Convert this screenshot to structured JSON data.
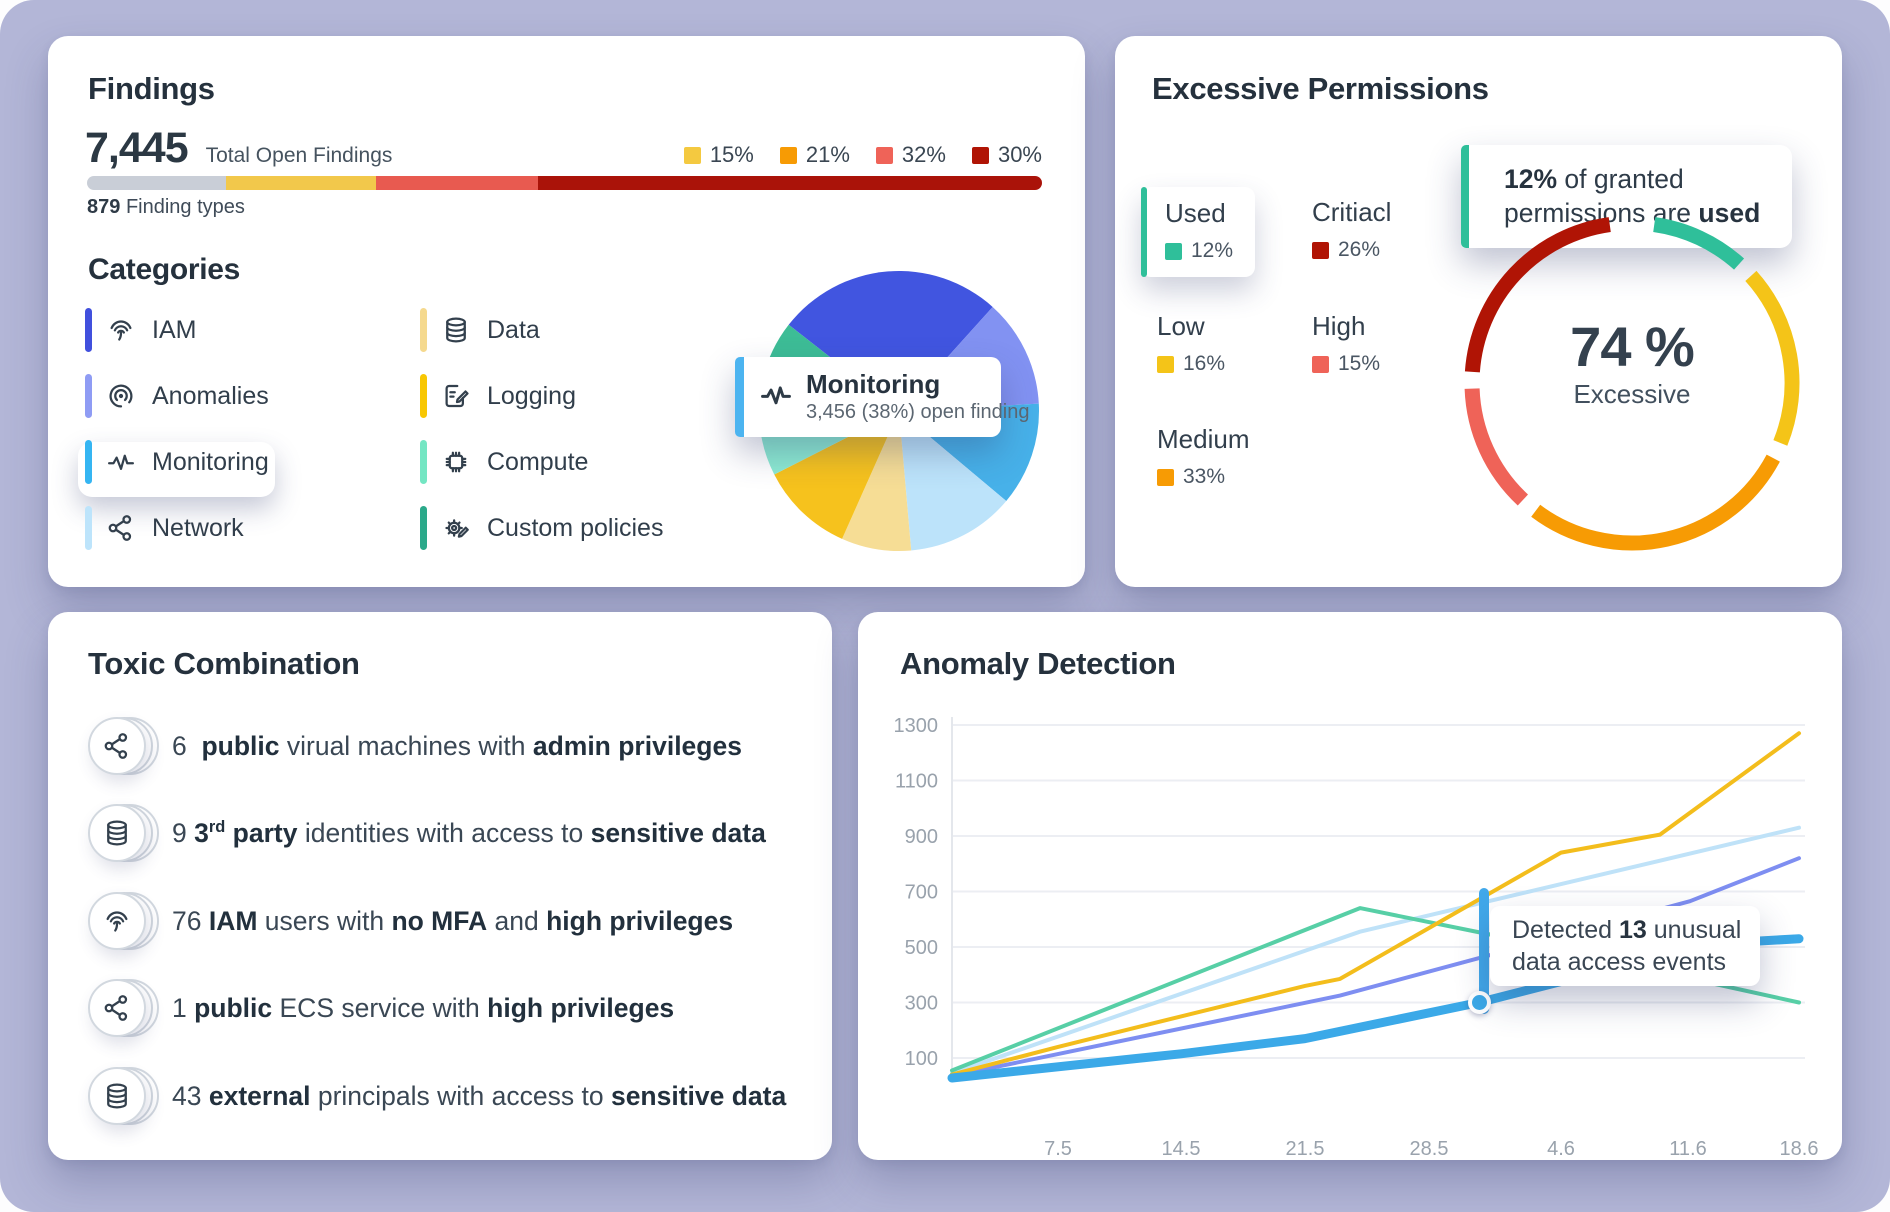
{
  "app": {
    "background": "#b3b6d7"
  },
  "findings": {
    "title": "Findings",
    "total": "7,445",
    "total_label": "Total Open Findings",
    "legend": [
      {
        "label": "15%",
        "color": "#f4c940"
      },
      {
        "label": "21%",
        "color": "#f79b04"
      },
      {
        "label": "32%",
        "color": "#ef6358"
      },
      {
        "label": "30%",
        "color": "#b01405"
      }
    ],
    "bar_segments": [
      {
        "color": "#c9ced7",
        "pct": 14.6
      },
      {
        "color": "#f2c84b",
        "pct": 15.7
      },
      {
        "color": "#e85a50",
        "pct": 16.9
      },
      {
        "color": "#aa1309",
        "pct": 52.8
      }
    ],
    "types_count": "879",
    "types_label": "Finding types",
    "categories_title": "Categories",
    "categories": [
      {
        "label": "IAM",
        "color": "#4150dd",
        "icon": "fingerprint"
      },
      {
        "label": "Anomalies",
        "color": "#8f9cf4",
        "icon": "anomaly"
      },
      {
        "label": "Monitoring",
        "color": "#35b5f2",
        "icon": "pulse",
        "highlight": true
      },
      {
        "label": "Network",
        "color": "#bde4fb",
        "icon": "network"
      },
      {
        "label": "Data",
        "color": "#f5d98e",
        "icon": "database"
      },
      {
        "label": "Logging",
        "color": "#f8c703",
        "icon": "logging"
      },
      {
        "label": "Compute",
        "color": "#74e6c3",
        "icon": "chip"
      },
      {
        "label": "Custom policies",
        "color": "#2ba98a",
        "icon": "policy"
      }
    ],
    "tooltip": {
      "title": "Monitoring",
      "subtitle": "3,456 (38%) open finding",
      "accent": "#4cb4f0"
    }
  },
  "permissions": {
    "title": "Excessive Permissions",
    "legend": [
      {
        "label": "Used",
        "pct": "12%",
        "color": "#2fbf9a",
        "highlight": true
      },
      {
        "label": "Critiacl",
        "pct": "26%",
        "color": "#b01405"
      },
      {
        "label": "Low",
        "pct": "16%",
        "color": "#f4c418"
      },
      {
        "label": "High",
        "pct": "15%",
        "color": "#ef6358"
      },
      {
        "label": "Medium",
        "pct": "33%",
        "color": "#f79b04"
      }
    ],
    "tooltip": {
      "line1_bold": "12%",
      "line1_rest": " of granted",
      "line2_rest": "permissions are ",
      "line2_bold": "used"
    },
    "donut_center_value": "74 %",
    "donut_center_label": "Excessive"
  },
  "toxic": {
    "title": "Toxic Combination",
    "rows": [
      {
        "icon": "network",
        "runs": [
          {
            "t": "6  "
          },
          {
            "t": "public",
            "b": true
          },
          {
            "t": " virual machines with "
          },
          {
            "t": "admin privileges",
            "b": true
          }
        ]
      },
      {
        "icon": "database",
        "runs": [
          {
            "t": "9 "
          },
          {
            "t": "3",
            "b": true
          },
          {
            "t": "rd",
            "b": true,
            "sup": true
          },
          {
            "t": " party",
            "b": true
          },
          {
            "t": " identities with access to "
          },
          {
            "t": "sensitive data",
            "b": true
          }
        ]
      },
      {
        "icon": "fingerprint",
        "runs": [
          {
            "t": "76 "
          },
          {
            "t": "IAM",
            "b": true
          },
          {
            "t": " users with "
          },
          {
            "t": "no MFA",
            "b": true
          },
          {
            "t": " and "
          },
          {
            "t": "high privileges",
            "b": true
          }
        ]
      },
      {
        "icon": "network",
        "runs": [
          {
            "t": "1 "
          },
          {
            "t": "public",
            "b": true
          },
          {
            "t": " ECS service with "
          },
          {
            "t": "high privileges",
            "b": true
          }
        ]
      },
      {
        "icon": "database",
        "runs": [
          {
            "t": "43 "
          },
          {
            "t": "external",
            "b": true
          },
          {
            "t": " principals with access to "
          },
          {
            "t": "sensitive data",
            "b": true
          }
        ]
      }
    ]
  },
  "anomaly": {
    "title": "Anomaly Detection",
    "tooltip": {
      "line1_pre": "Detected ",
      "line1_bold": "13",
      "line1_post": " unusual",
      "line2": "data access events",
      "accent": "#41a8ea"
    }
  },
  "chart_data": [
    {
      "type": "pie",
      "title": "Findings by category",
      "highlight_label": "Monitoring",
      "highlight_value": "3,456 (38%) open finding",
      "slices": [
        {
          "name": "monitoring",
          "color": "#4155e0",
          "start": -52,
          "end": 42
        },
        {
          "name": "slice-periwinkle",
          "color": "#8292f2",
          "start": 42,
          "end": 87
        },
        {
          "name": "slice-sky",
          "color": "#47b1e9",
          "start": 87,
          "end": 130
        },
        {
          "name": "slice-pale-blue",
          "color": "#bce3fa",
          "start": 130,
          "end": 175
        },
        {
          "name": "slice-cream",
          "color": "#f6dd95",
          "start": 175,
          "end": 204
        },
        {
          "name": "slice-yellow",
          "color": "#f6c21d",
          "start": 204,
          "end": 243
        },
        {
          "name": "slice-mint",
          "color": "#8cead2",
          "start": 243,
          "end": 283
        },
        {
          "name": "slice-teal",
          "color": "#3dbd96",
          "start": 283,
          "end": 308
        }
      ]
    },
    {
      "type": "donut",
      "center_value": "74 %",
      "center_label": "Excessive",
      "segments": [
        {
          "name": "used",
          "color": "#2fbf9a",
          "start": 8,
          "end": 42
        },
        {
          "name": "low",
          "color": "#f4c418",
          "start": 48,
          "end": 112
        },
        {
          "name": "medium",
          "color": "#f79b04",
          "start": 118,
          "end": 217
        },
        {
          "name": "high",
          "color": "#ef6358",
          "start": 223,
          "end": 268
        },
        {
          "name": "critical",
          "color": "#b01405",
          "start": 274,
          "end": 352
        }
      ]
    },
    {
      "type": "line",
      "x_ticks": [
        "7.5",
        "14.5",
        "21.5",
        "28.5",
        "4.6",
        "11.6",
        "18.6"
      ],
      "y_ticks": [
        100,
        300,
        500,
        700,
        900,
        1100,
        1300
      ],
      "ylim": [
        0,
        1300
      ],
      "series": [
        {
          "name": "light-blue",
          "color": "#bfe2f8",
          "width": 4,
          "points": [
            [
              94,
              45
            ],
            [
              502,
              555
            ],
            [
              941,
              930
            ]
          ]
        },
        {
          "name": "periwinkle",
          "color": "#7e8ef1",
          "width": 4,
          "points": [
            [
              94,
              35
            ],
            [
              482,
              325
            ],
            [
              832,
              665
            ],
            [
              941,
              820
            ]
          ]
        },
        {
          "name": "teal",
          "color": "#57cfa6",
          "width": 4,
          "points": [
            [
              94,
              55
            ],
            [
              502,
              640
            ],
            [
              632,
              545
            ],
            [
              941,
              300
            ]
          ]
        },
        {
          "name": "yellow",
          "color": "#f3bd1c",
          "width": 4,
          "points": [
            [
              94,
              40
            ],
            [
              200,
              140
            ],
            [
              323,
              250
            ],
            [
              447,
              360
            ],
            [
              482,
              385
            ],
            [
              703,
              840
            ],
            [
              802,
              905
            ],
            [
              941,
              1270
            ]
          ]
        },
        {
          "name": "bold-blue",
          "color": "#3ba9e8",
          "width": 9,
          "points": [
            [
              94,
              28
            ],
            [
              323,
              115
            ],
            [
              447,
              170
            ],
            [
              621,
              300
            ],
            [
              762,
              430
            ],
            [
              895,
              520
            ],
            [
              941,
              530
            ]
          ]
        }
      ],
      "marker": {
        "x": 621,
        "value": 300,
        "label": "Detected 13 unusual data access events"
      }
    }
  ]
}
